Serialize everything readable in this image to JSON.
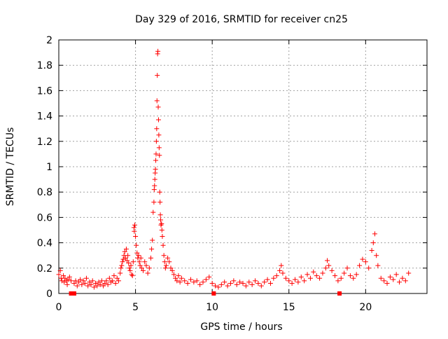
{
  "chart_data": {
    "type": "scatter",
    "title": "Day 329 of 2016, SRMTID for receiver cn25",
    "xlabel": "GPS time / hours",
    "ylabel": "SRMTID / TECUs",
    "xlim": [
      0,
      24
    ],
    "ylim": [
      0,
      2
    ],
    "x_ticks": [
      0,
      5,
      10,
      15,
      20
    ],
    "x_tick_labels": [
      "0",
      "5",
      "10",
      "15",
      "20"
    ],
    "y_ticks": [
      0,
      0.2,
      0.4,
      0.6,
      0.8,
      1,
      1.2,
      1.4,
      1.6,
      1.8,
      2
    ],
    "y_tick_labels": [
      "0",
      "0.2",
      "0.4",
      "0.6",
      "0.8",
      "1",
      "1.2",
      "1.4",
      "1.6",
      "1.8",
      "2"
    ],
    "grid": true,
    "marker_color": "#ff0000",
    "series": [
      {
        "name": "SRMTID",
        "marker": "plus",
        "points": [
          [
            0.0,
            0.15
          ],
          [
            0.1,
            0.18
          ],
          [
            0.15,
            0.12
          ],
          [
            0.2,
            0.1
          ],
          [
            0.3,
            0.14
          ],
          [
            0.35,
            0.09
          ],
          [
            0.4,
            0.12
          ],
          [
            0.5,
            0.1
          ],
          [
            0.55,
            0.07
          ],
          [
            0.6,
            0.11
          ],
          [
            0.7,
            0.13
          ],
          [
            0.8,
            0.1
          ],
          [
            1.0,
            0.08
          ],
          [
            1.1,
            0.1
          ],
          [
            1.2,
            0.06
          ],
          [
            1.3,
            0.09
          ],
          [
            1.4,
            0.11
          ],
          [
            1.5,
            0.07
          ],
          [
            1.6,
            0.1
          ],
          [
            1.7,
            0.08
          ],
          [
            1.8,
            0.12
          ],
          [
            1.9,
            0.06
          ],
          [
            2.0,
            0.09
          ],
          [
            2.1,
            0.07
          ],
          [
            2.2,
            0.1
          ],
          [
            2.3,
            0.05
          ],
          [
            2.4,
            0.08
          ],
          [
            2.5,
            0.06
          ],
          [
            2.6,
            0.09
          ],
          [
            2.7,
            0.07
          ],
          [
            2.8,
            0.1
          ],
          [
            2.9,
            0.06
          ],
          [
            3.0,
            0.08
          ],
          [
            3.1,
            0.1
          ],
          [
            3.2,
            0.07
          ],
          [
            3.3,
            0.12
          ],
          [
            3.4,
            0.09
          ],
          [
            3.5,
            0.1
          ],
          [
            3.6,
            0.14
          ],
          [
            3.7,
            0.08
          ],
          [
            3.8,
            0.12
          ],
          [
            3.9,
            0.1
          ],
          [
            4.0,
            0.16
          ],
          [
            4.05,
            0.2
          ],
          [
            4.1,
            0.22
          ],
          [
            4.15,
            0.25
          ],
          [
            4.2,
            0.27
          ],
          [
            4.25,
            0.3
          ],
          [
            4.3,
            0.33
          ],
          [
            4.35,
            0.28
          ],
          [
            4.4,
            0.35
          ],
          [
            4.45,
            0.26
          ],
          [
            4.5,
            0.3
          ],
          [
            4.55,
            0.24
          ],
          [
            4.6,
            0.2
          ],
          [
            4.65,
            0.18
          ],
          [
            4.7,
            0.22
          ],
          [
            4.75,
            0.15
          ],
          [
            4.8,
            0.14
          ],
          [
            4.85,
            0.25
          ],
          [
            4.9,
            0.52
          ],
          [
            4.92,
            0.49
          ],
          [
            4.95,
            0.54
          ],
          [
            5.0,
            0.45
          ],
          [
            5.05,
            0.38
          ],
          [
            5.1,
            0.32
          ],
          [
            5.15,
            0.28
          ],
          [
            5.2,
            0.3
          ],
          [
            5.25,
            0.25
          ],
          [
            5.3,
            0.22
          ],
          [
            5.35,
            0.28
          ],
          [
            5.4,
            0.2
          ],
          [
            5.5,
            0.18
          ],
          [
            5.6,
            0.25
          ],
          [
            5.7,
            0.22
          ],
          [
            5.8,
            0.16
          ],
          [
            5.9,
            0.2
          ],
          [
            6.0,
            0.28
          ],
          [
            6.05,
            0.35
          ],
          [
            6.1,
            0.42
          ],
          [
            6.15,
            0.64
          ],
          [
            6.2,
            0.72
          ],
          [
            6.22,
            0.82
          ],
          [
            6.24,
            0.85
          ],
          [
            6.26,
            0.9
          ],
          [
            6.28,
            0.95
          ],
          [
            6.3,
            0.98
          ],
          [
            6.32,
            1.05
          ],
          [
            6.34,
            1.1
          ],
          [
            6.36,
            1.2
          ],
          [
            6.38,
            1.3
          ],
          [
            6.4,
            1.52
          ],
          [
            6.42,
            1.72
          ],
          [
            6.44,
            1.89
          ],
          [
            6.46,
            1.91
          ],
          [
            6.48,
            1.47
          ],
          [
            6.5,
            1.37
          ],
          [
            6.52,
            1.25
          ],
          [
            6.54,
            1.15
          ],
          [
            6.56,
            1.09
          ],
          [
            6.58,
            0.8
          ],
          [
            6.6,
            0.72
          ],
          [
            6.62,
            0.62
          ],
          [
            6.64,
            0.58
          ],
          [
            6.66,
            0.54
          ],
          [
            6.7,
            0.55
          ],
          [
            6.72,
            0.5
          ],
          [
            6.75,
            0.45
          ],
          [
            6.8,
            0.38
          ],
          [
            6.85,
            0.3
          ],
          [
            6.9,
            0.25
          ],
          [
            6.95,
            0.2
          ],
          [
            7.0,
            0.22
          ],
          [
            7.1,
            0.28
          ],
          [
            7.2,
            0.25
          ],
          [
            7.3,
            0.2
          ],
          [
            7.4,
            0.18
          ],
          [
            7.5,
            0.15
          ],
          [
            7.6,
            0.12
          ],
          [
            7.7,
            0.1
          ],
          [
            7.8,
            0.14
          ],
          [
            7.9,
            0.09
          ],
          [
            8.0,
            0.12
          ],
          [
            8.2,
            0.1
          ],
          [
            8.4,
            0.08
          ],
          [
            8.6,
            0.11
          ],
          [
            8.8,
            0.09
          ],
          [
            9.0,
            0.1
          ],
          [
            9.2,
            0.07
          ],
          [
            9.4,
            0.09
          ],
          [
            9.6,
            0.11
          ],
          [
            9.8,
            0.13
          ],
          [
            10.0,
            0.08
          ],
          [
            10.2,
            0.06
          ],
          [
            10.4,
            0.05
          ],
          [
            10.6,
            0.07
          ],
          [
            10.8,
            0.09
          ],
          [
            11.0,
            0.06
          ],
          [
            11.2,
            0.08
          ],
          [
            11.4,
            0.1
          ],
          [
            11.6,
            0.07
          ],
          [
            11.8,
            0.09
          ],
          [
            12.0,
            0.08
          ],
          [
            12.2,
            0.06
          ],
          [
            12.4,
            0.09
          ],
          [
            12.6,
            0.07
          ],
          [
            12.8,
            0.1
          ],
          [
            13.0,
            0.08
          ],
          [
            13.2,
            0.06
          ],
          [
            13.4,
            0.09
          ],
          [
            13.6,
            0.11
          ],
          [
            13.8,
            0.08
          ],
          [
            14.0,
            0.12
          ],
          [
            14.2,
            0.14
          ],
          [
            14.4,
            0.18
          ],
          [
            14.5,
            0.22
          ],
          [
            14.6,
            0.16
          ],
          [
            14.8,
            0.12
          ],
          [
            15.0,
            0.1
          ],
          [
            15.2,
            0.08
          ],
          [
            15.4,
            0.11
          ],
          [
            15.6,
            0.09
          ],
          [
            15.8,
            0.13
          ],
          [
            16.0,
            0.1
          ],
          [
            16.2,
            0.15
          ],
          [
            16.4,
            0.12
          ],
          [
            16.6,
            0.17
          ],
          [
            16.8,
            0.14
          ],
          [
            17.0,
            0.12
          ],
          [
            17.2,
            0.16
          ],
          [
            17.4,
            0.2
          ],
          [
            17.5,
            0.26
          ],
          [
            17.6,
            0.22
          ],
          [
            17.8,
            0.18
          ],
          [
            18.0,
            0.14
          ],
          [
            18.2,
            0.1
          ],
          [
            18.4,
            0.12
          ],
          [
            18.6,
            0.16
          ],
          [
            18.8,
            0.2
          ],
          [
            19.0,
            0.14
          ],
          [
            19.2,
            0.12
          ],
          [
            19.4,
            0.15
          ],
          [
            19.6,
            0.22
          ],
          [
            19.8,
            0.27
          ],
          [
            20.0,
            0.25
          ],
          [
            20.2,
            0.2
          ],
          [
            20.4,
            0.34
          ],
          [
            20.5,
            0.4
          ],
          [
            20.6,
            0.47
          ],
          [
            20.7,
            0.3
          ],
          [
            20.8,
            0.22
          ],
          [
            21.0,
            0.12
          ],
          [
            21.2,
            0.1
          ],
          [
            21.4,
            0.08
          ],
          [
            21.6,
            0.13
          ],
          [
            21.8,
            0.11
          ],
          [
            22.0,
            0.15
          ],
          [
            22.2,
            0.09
          ],
          [
            22.4,
            0.12
          ],
          [
            22.6,
            0.1
          ],
          [
            22.8,
            0.16
          ]
        ]
      }
    ],
    "zero_markers": {
      "marker": "square",
      "x": [
        0.8,
        1.0,
        10.1,
        18.3
      ]
    }
  }
}
